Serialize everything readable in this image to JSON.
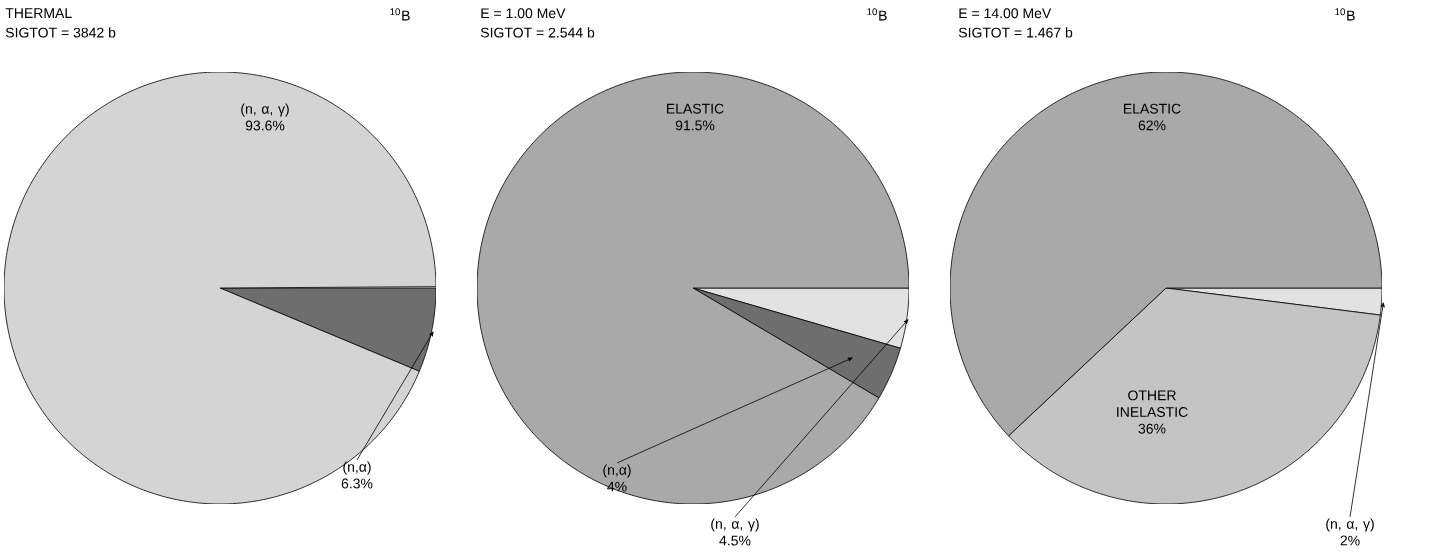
{
  "chart_data": [
    {
      "type": "pie",
      "title": "THERMAL",
      "subtitle": "SIGTOT = 3842 b",
      "annotations": [
        "$^{10}$B"
      ],
      "categories": [
        "(n,α)",
        "(n, α, γ)"
      ],
      "values": [
        6.3,
        93.6
      ],
      "value_labels": [
        "6.3%",
        "93.6%"
      ],
      "colors": [
        "#6e6e6e",
        "#d4d4d4"
      ]
    },
    {
      "type": "pie",
      "title": "E = 1.00 MeV",
      "subtitle": "SIGTOT = 2.544 b",
      "annotations": [
        "$^{10}$B"
      ],
      "categories": [
        "(n, α, γ)",
        "(n,α)",
        "ELASTIC"
      ],
      "values": [
        4.5,
        4,
        91.5
      ],
      "value_labels": [
        "4.5%",
        "4%",
        "91.5%"
      ],
      "colors": [
        "#e2e2e2",
        "#6e6e6e",
        "#a9a9a9"
      ]
    },
    {
      "type": "pie",
      "title": "E = 14.00 MeV",
      "subtitle": "SIGTOT = 1.467 b",
      "annotations": [
        "$^{10}$B"
      ],
      "categories": [
        "(n, α, γ)",
        "OTHER INELASTIC",
        "ELASTIC"
      ],
      "values": [
        2,
        36,
        62
      ],
      "value_labels": [
        "2%",
        "36%",
        "62%"
      ],
      "colors": [
        "#e2e2e2",
        "#c4c4c4",
        "#a9a9a9"
      ]
    }
  ]
}
